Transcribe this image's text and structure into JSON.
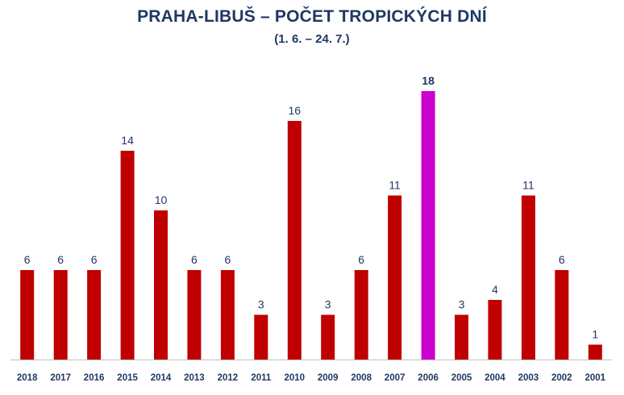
{
  "chart_data": {
    "type": "bar",
    "title": "PRAHA-LIBUŠ – POČET TROPICKÝCH DNÍ",
    "subtitle": "(1. 6. – 24. 7.)",
    "categories": [
      "2018",
      "2017",
      "2016",
      "2015",
      "2014",
      "2013",
      "2012",
      "2011",
      "2010",
      "2009",
      "2008",
      "2007",
      "2006",
      "2005",
      "2004",
      "2003",
      "2002",
      "2001"
    ],
    "values": [
      6,
      6,
      6,
      14,
      10,
      6,
      6,
      3,
      16,
      3,
      6,
      11,
      18,
      3,
      4,
      11,
      6,
      1
    ],
    "highlight_category": "2006",
    "colors": {
      "bar": "#c00000",
      "highlight_bar": "#cc00cc",
      "text": "#1f3864",
      "axis": "#bfbfbf"
    },
    "data_labels": true,
    "grid": false,
    "legend": "none",
    "xlabel": "",
    "ylabel": "",
    "ylim": [
      0,
      18
    ]
  }
}
